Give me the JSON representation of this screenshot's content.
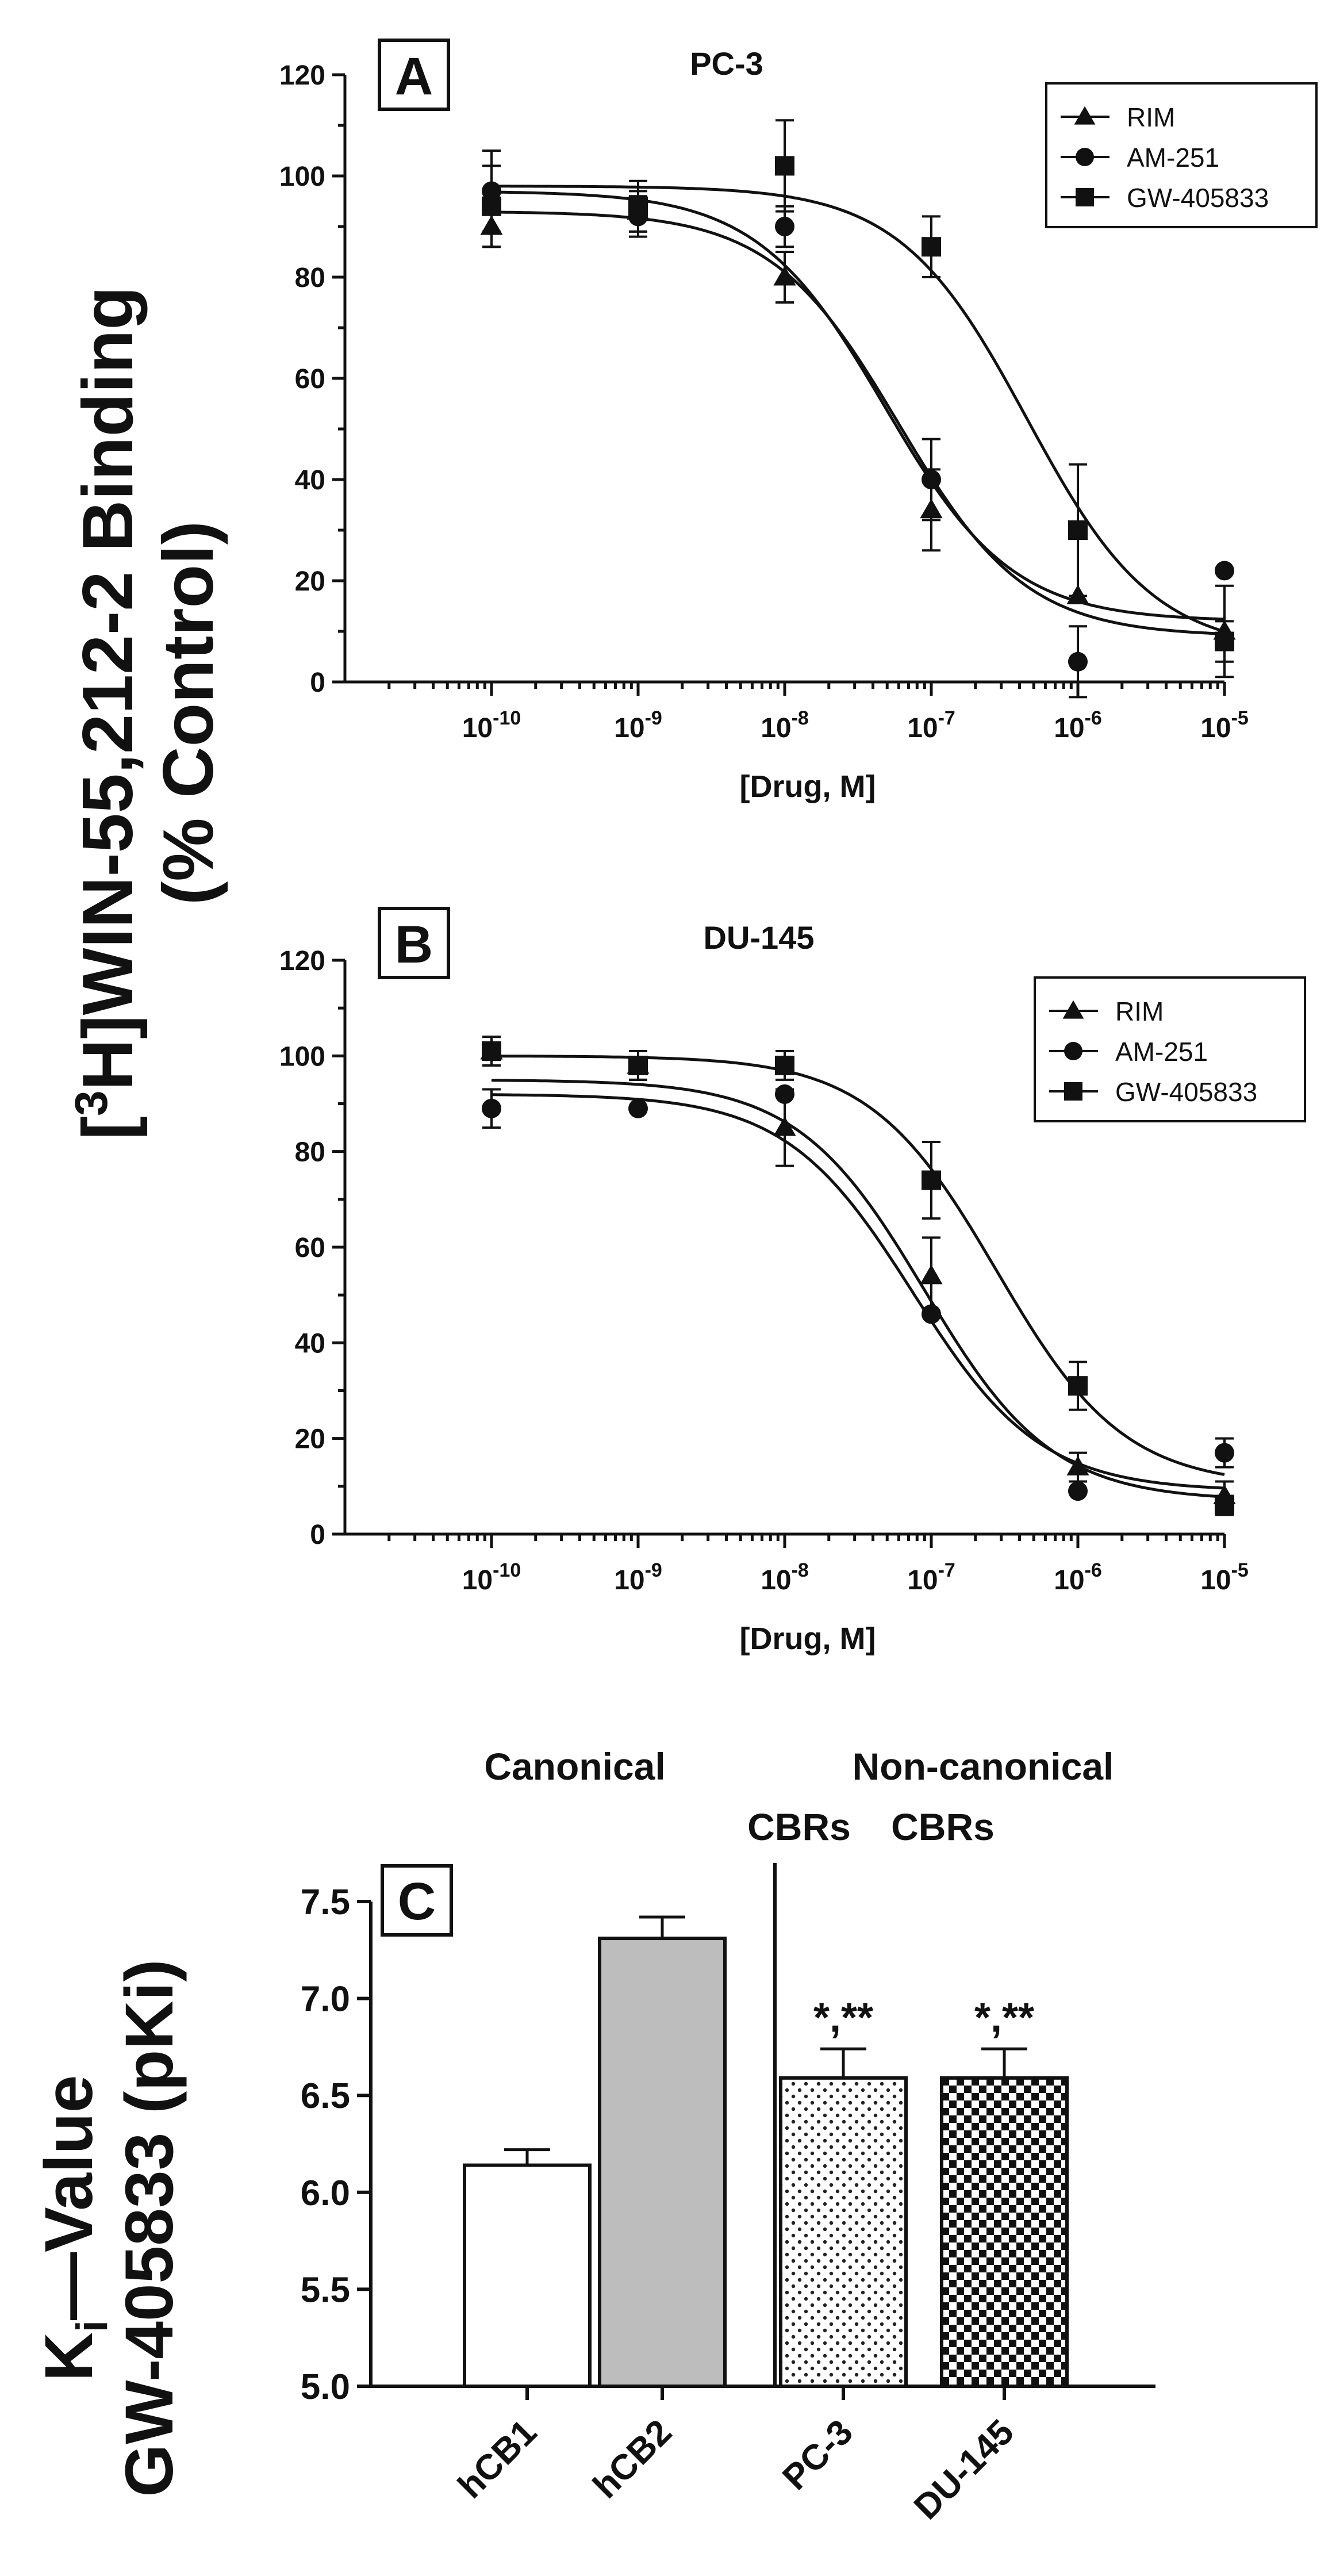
{
  "figure": {
    "shared_ylabel": {
      "pre": "[",
      "sup": "3",
      "post": "H]WIN-55,212-2 Binding",
      "line2": "(% Control)"
    }
  },
  "chart_data": [
    {
      "type": "line",
      "panel_letter": "A",
      "title": "PC-3",
      "xlabel": "[Drug, M]",
      "ylabel": "",
      "xscale": "log",
      "xlim": [
        1e-11,
        1e-05
      ],
      "ylim": [
        0,
        120
      ],
      "yticks": [
        0,
        20,
        40,
        60,
        80,
        100,
        120
      ],
      "xticks": [
        {
          "base": "10",
          "exp": "-10",
          "value": 1e-10
        },
        {
          "base": "10",
          "exp": "-9",
          "value": 1e-09
        },
        {
          "base": "10",
          "exp": "-8",
          "value": 1e-08
        },
        {
          "base": "10",
          "exp": "-7",
          "value": 1e-07
        },
        {
          "base": "10",
          "exp": "-6",
          "value": 1e-06
        },
        {
          "base": "10",
          "exp": "-5",
          "value": 1e-05
        }
      ],
      "legend_position": "top-right",
      "grid": false,
      "series": [
        {
          "name": "RIM",
          "marker": "triangle",
          "x": [
            1e-10,
            1e-09,
            1e-08,
            1e-07,
            1e-06,
            1e-05
          ],
          "y": [
            90,
            93,
            80,
            34,
            17,
            10
          ],
          "err": [
            4,
            4,
            5,
            8,
            0,
            9
          ],
          "fit": {
            "top": 97,
            "bottom": 12,
            "ic50": 4.8e-08
          }
        },
        {
          "name": "AM-251",
          "marker": "circle",
          "x": [
            1e-10,
            1e-09,
            1e-08,
            1e-07,
            1e-06,
            1e-05
          ],
          "y": [
            97,
            92,
            90,
            40,
            4,
            22
          ],
          "err": [
            8,
            4,
            4,
            8,
            7,
            0
          ],
          "fit": {
            "top": 93,
            "bottom": 9,
            "ic50": 6e-08
          }
        },
        {
          "name": "GW-405833",
          "marker": "square",
          "x": [
            1e-10,
            1e-09,
            1e-08,
            1e-07,
            1e-06,
            1e-05
          ],
          "y": [
            94,
            94,
            102,
            86,
            30,
            8
          ],
          "err": [
            8,
            5,
            9,
            6,
            13,
            4
          ],
          "fit": {
            "top": 98,
            "bottom": 6,
            "ic50": 4.5e-07
          }
        }
      ]
    },
    {
      "type": "line",
      "panel_letter": "B",
      "title": "DU-145",
      "xlabel": "[Drug, M]",
      "ylabel": "",
      "xscale": "log",
      "xlim": [
        1e-11,
        1e-05
      ],
      "ylim": [
        0,
        120
      ],
      "yticks": [
        0,
        20,
        40,
        60,
        80,
        100,
        120
      ],
      "xticks": [
        {
          "base": "10",
          "exp": "-10",
          "value": 1e-10
        },
        {
          "base": "10",
          "exp": "-9",
          "value": 1e-09
        },
        {
          "base": "10",
          "exp": "-8",
          "value": 1e-08
        },
        {
          "base": "10",
          "exp": "-7",
          "value": 1e-07
        },
        {
          "base": "10",
          "exp": "-6",
          "value": 1e-06
        },
        {
          "base": "10",
          "exp": "-5",
          "value": 1e-05
        }
      ],
      "legend_position": "top-right",
      "grid": false,
      "series": [
        {
          "name": "RIM",
          "marker": "triangle",
          "x": [
            1e-10,
            1e-09,
            1e-08,
            1e-07,
            1e-06,
            1e-05
          ],
          "y": [
            101,
            98,
            85,
            54,
            14,
            8
          ],
          "err": [
            3,
            3,
            8,
            8,
            3,
            3
          ],
          "fit": {
            "top": 95,
            "bottom": 7,
            "ic50": 9e-08
          }
        },
        {
          "name": "AM-251",
          "marker": "circle",
          "x": [
            1e-10,
            1e-09,
            1e-08,
            1e-07,
            1e-06,
            1e-05
          ],
          "y": [
            89,
            89,
            92,
            46,
            9,
            17
          ],
          "err": [
            4,
            0,
            0,
            0,
            0,
            3
          ],
          "fit": {
            "top": 92,
            "bottom": 9,
            "ic50": 7.5e-08
          }
        },
        {
          "name": "GW-405833",
          "marker": "square",
          "x": [
            1e-10,
            1e-09,
            1e-08,
            1e-07,
            1e-06,
            1e-05
          ],
          "y": [
            101,
            98,
            98,
            74,
            31,
            6
          ],
          "err": [
            3,
            3,
            3,
            8,
            5,
            2
          ],
          "fit": {
            "top": 100,
            "bottom": 10,
            "ic50": 2.8e-07
          }
        }
      ]
    },
    {
      "type": "bar",
      "panel_letter": "C",
      "title": "",
      "xlabel": "",
      "ylabel": {
        "pre": "K",
        "sub": "i",
        "post": "—Value",
        "line2": "GW-405833 (pKi)"
      },
      "ylim": [
        5.0,
        7.5
      ],
      "yticks": [
        "5.0",
        "5.5",
        "6.0",
        "6.5",
        "7.0",
        "7.5"
      ],
      "categories": [
        "hCB1",
        "hCB2",
        "PC-3",
        "DU-145"
      ],
      "values": [
        6.14,
        7.31,
        6.59,
        6.59
      ],
      "err": [
        0.08,
        0.11,
        0.15,
        0.15
      ],
      "fills": [
        "white",
        "gray",
        "dots",
        "checker"
      ],
      "significance": [
        "",
        "",
        "*,**",
        "*,**"
      ],
      "group_labels": {
        "canonical": "Canonical",
        "noncanonical": "Non-canonical",
        "cbrs_left": "CBRs",
        "cbrs_right": "CBRs"
      }
    }
  ]
}
